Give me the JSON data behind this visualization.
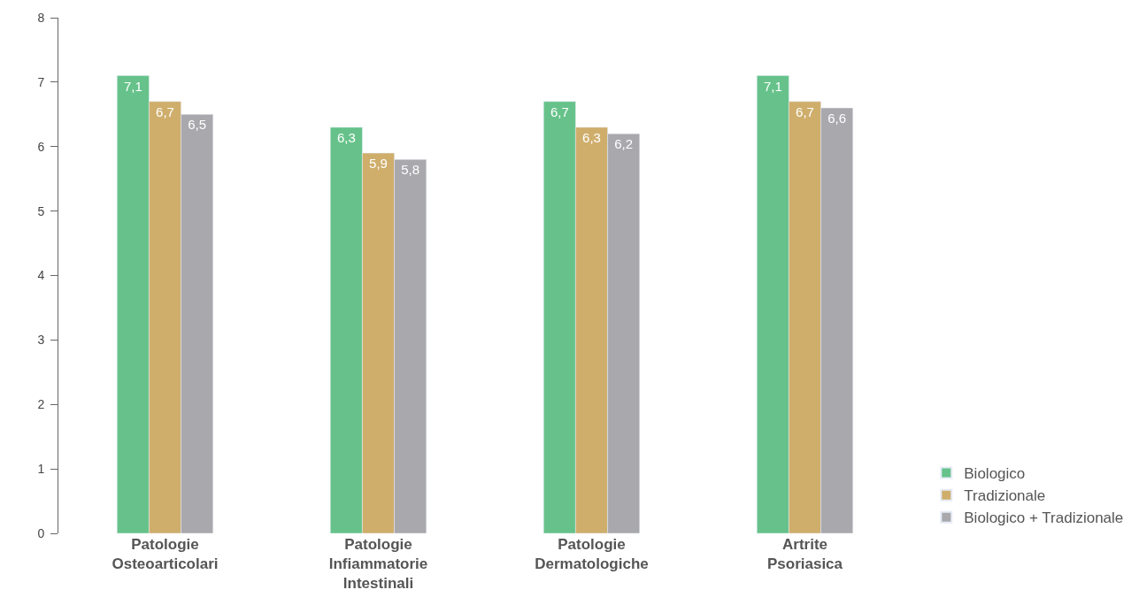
{
  "chart_data": {
    "type": "bar",
    "categories": [
      "Patologie\nOsteoarticolari",
      "Patologie\nInfiammatorie\nIntestinali",
      "Patologie\nDermatologiche",
      "Artrite\nPsoriasica"
    ],
    "series": [
      {
        "name": "Biologico",
        "color": "#66c28a",
        "values": [
          7.1,
          6.3,
          6.7,
          7.1
        ],
        "value_labels": [
          "7,1",
          "6,3",
          "6,7",
          "7,1"
        ]
      },
      {
        "name": "Tradizionale",
        "color": "#cfae6c",
        "values": [
          6.7,
          5.9,
          6.3,
          6.7
        ],
        "value_labels": [
          "6,7",
          "5,9",
          "6,3",
          "6,7"
        ]
      },
      {
        "name": "Biologico + Tradizionale",
        "color": "#a9a9ad",
        "values": [
          6.5,
          5.8,
          6.2,
          6.6
        ],
        "value_labels": [
          "6,5",
          "5,8",
          "6,2",
          "6,6"
        ]
      }
    ],
    "ylim": [
      0,
      8
    ],
    "yticks": [
      0,
      1,
      2,
      3,
      4,
      5,
      6,
      7,
      8
    ],
    "legend": "bottom right"
  }
}
